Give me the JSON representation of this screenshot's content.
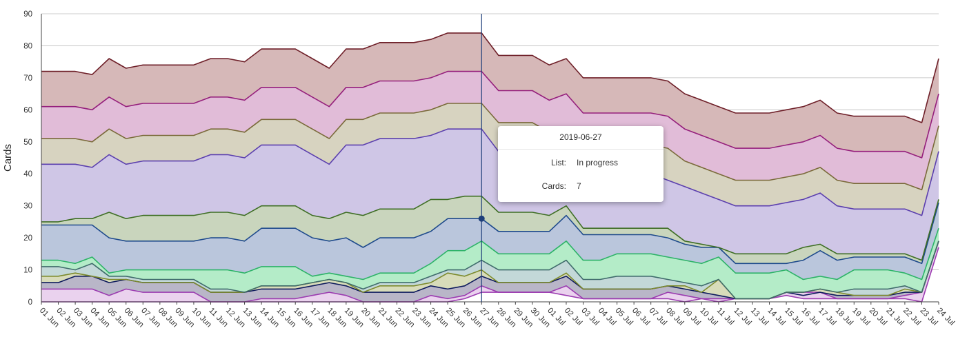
{
  "chart_data": {
    "type": "area",
    "stacked": true,
    "ylabel": "Cards",
    "ylim": [
      0,
      90
    ],
    "yticks": [
      0,
      10,
      20,
      30,
      40,
      50,
      60,
      70,
      80,
      90
    ],
    "grid": true,
    "categories": [
      "01 Jun",
      "02 Jun",
      "03 Jun",
      "04 Jun",
      "05 Jun",
      "06 Jun",
      "07 Jun",
      "08 Jun",
      "09 Jun",
      "10 Jun",
      "11 Jun",
      "12 Jun",
      "13 Jun",
      "14 Jun",
      "15 Jun",
      "16 Jun",
      "17 Jun",
      "18 Jun",
      "19 Jun",
      "20 Jun",
      "21 Jun",
      "22 Jun",
      "23 Jun",
      "24 Jun",
      "25 Jun",
      "26 Jun",
      "27 Jun",
      "28 Jun",
      "29 Jun",
      "30 Jun",
      "01 Jul",
      "02 Jul",
      "03 Jul",
      "04 Jul",
      "05 Jul",
      "06 Jul",
      "07 Jul",
      "08 Jul",
      "09 Jul",
      "10 Jul",
      "11 Jul",
      "12 Jul",
      "13 Jul",
      "14 Jul",
      "15 Jul",
      "16 Jul",
      "17 Jul",
      "18 Jul",
      "19 Jul",
      "20 Jul",
      "21 Jul",
      "22 Jul",
      "23 Jul",
      "24 Jul"
    ],
    "series_colors": [
      {
        "line": "#9b3bb0",
        "fill": "#ead2ee"
      },
      {
        "line": "#0d1a5c",
        "fill": "#b9b6c8"
      },
      {
        "line": "#7d8a2c",
        "fill": "#d8dcba"
      },
      {
        "line": "#3f6b6b",
        "fill": "#c3d8d8"
      },
      {
        "line": "#2db368",
        "fill": "#b4ecc8"
      },
      {
        "line": "#1e4a8c",
        "fill": "#bac6dc"
      },
      {
        "line": "#3e6e24",
        "fill": "#c9d5bd"
      },
      {
        "line": "#5b3fae",
        "fill": "#cfc6e6"
      },
      {
        "line": "#7a6a3a",
        "fill": "#d7d3c0"
      },
      {
        "line": "#951f7c",
        "fill": "#e1bcd8"
      },
      {
        "line": "#6e1f28",
        "fill": "#d6b8b8"
      }
    ],
    "series_totals": [
      [
        0,
        0,
        0,
        0,
        0,
        0,
        0,
        0,
        0,
        0,
        0,
        0,
        0,
        0,
        0,
        0,
        0,
        0,
        0,
        0,
        0,
        0,
        0,
        0,
        0,
        1,
        3,
        3,
        3,
        3,
        3,
        2,
        1,
        1,
        1,
        1,
        1,
        1,
        0,
        1,
        1,
        1,
        1,
        1,
        2,
        1,
        1,
        1,
        1,
        1,
        1,
        1,
        0,
        17
      ],
      [
        4,
        4,
        4,
        4,
        2,
        4,
        3,
        3,
        3,
        3,
        0,
        0,
        0,
        1,
        1,
        1,
        2,
        3,
        2,
        0,
        0,
        0,
        0,
        2,
        1,
        2,
        5,
        3,
        3,
        3,
        3,
        5,
        1,
        1,
        1,
        1,
        1,
        3,
        2,
        1,
        0,
        1,
        1,
        1,
        3,
        3,
        3,
        1,
        1,
        1,
        1,
        2,
        3,
        19
      ],
      [
        6,
        6,
        8,
        8,
        6,
        7,
        6,
        6,
        6,
        6,
        3,
        3,
        3,
        4,
        4,
        4,
        5,
        6,
        5,
        3,
        3,
        3,
        3,
        5,
        4,
        5,
        8,
        6,
        6,
        6,
        6,
        8,
        4,
        4,
        4,
        4,
        4,
        5,
        4,
        3,
        2,
        1,
        1,
        1,
        3,
        2,
        3,
        2,
        2,
        2,
        2,
        3,
        3,
        19
      ],
      [
        8,
        8,
        9,
        8,
        7,
        7,
        6,
        6,
        6,
        6,
        3,
        3,
        3,
        5,
        5,
        5,
        6,
        7,
        6,
        3,
        5,
        5,
        5,
        6,
        9,
        8,
        10,
        6,
        6,
        6,
        6,
        9,
        4,
        4,
        4,
        4,
        4,
        5,
        5,
        3,
        7,
        1,
        1,
        1,
        3,
        3,
        4,
        3,
        2,
        2,
        2,
        4,
        3,
        19
      ],
      [
        11,
        11,
        10,
        12,
        8,
        8,
        7,
        7,
        7,
        7,
        4,
        4,
        3,
        5,
        5,
        5,
        6,
        7,
        6,
        4,
        6,
        6,
        6,
        8,
        10,
        10,
        13,
        10,
        10,
        10,
        10,
        13,
        7,
        7,
        8,
        8,
        8,
        7,
        6,
        5,
        7,
        1,
        1,
        1,
        3,
        3,
        4,
        3,
        4,
        4,
        4,
        5,
        3,
        19
      ],
      [
        13,
        13,
        12,
        14,
        9,
        10,
        10,
        10,
        10,
        10,
        10,
        10,
        9,
        11,
        11,
        11,
        8,
        9,
        8,
        7,
        9,
        9,
        9,
        12,
        16,
        16,
        19,
        15,
        15,
        15,
        15,
        19,
        13,
        13,
        15,
        15,
        15,
        14,
        13,
        12,
        14,
        9,
        9,
        9,
        10,
        7,
        8,
        7,
        10,
        10,
        10,
        9,
        7,
        23
      ],
      [
        24,
        24,
        24,
        24,
        20,
        19,
        19,
        19,
        19,
        19,
        20,
        20,
        19,
        23,
        23,
        23,
        20,
        19,
        20,
        17,
        20,
        20,
        20,
        22,
        26,
        26,
        26,
        22,
        22,
        22,
        22,
        27,
        21,
        21,
        21,
        21,
        21,
        20,
        18,
        17,
        17,
        12,
        12,
        12,
        12,
        13,
        16,
        13,
        14,
        14,
        14,
        14,
        12,
        31
      ],
      [
        25,
        25,
        26,
        26,
        28,
        26,
        27,
        27,
        27,
        27,
        28,
        28,
        27,
        30,
        30,
        30,
        27,
        26,
        28,
        27,
        29,
        29,
        29,
        32,
        32,
        33,
        33,
        28,
        28,
        28,
        27,
        30,
        23,
        23,
        23,
        23,
        23,
        23,
        19,
        18,
        17,
        15,
        15,
        15,
        15,
        17,
        18,
        15,
        15,
        15,
        15,
        15,
        13,
        32
      ],
      [
        43,
        43,
        43,
        42,
        46,
        43,
        44,
        44,
        44,
        44,
        46,
        46,
        45,
        49,
        49,
        49,
        46,
        43,
        49,
        49,
        51,
        51,
        51,
        52,
        54,
        54,
        54,
        47,
        47,
        47,
        44,
        45,
        40,
        40,
        40,
        40,
        40,
        38,
        36,
        34,
        32,
        30,
        30,
        30,
        31,
        32,
        34,
        30,
        29,
        29,
        29,
        29,
        27,
        47
      ],
      [
        51,
        51,
        51,
        50,
        54,
        51,
        52,
        52,
        52,
        52,
        54,
        54,
        53,
        57,
        57,
        57,
        54,
        51,
        57,
        57,
        59,
        59,
        59,
        60,
        62,
        62,
        62,
        56,
        56,
        56,
        53,
        53,
        49,
        49,
        49,
        49,
        49,
        48,
        44,
        42,
        40,
        38,
        38,
        38,
        39,
        40,
        42,
        38,
        37,
        37,
        37,
        37,
        35,
        55
      ],
      [
        61,
        61,
        61,
        60,
        64,
        61,
        62,
        62,
        62,
        62,
        64,
        64,
        63,
        67,
        67,
        67,
        64,
        61,
        67,
        67,
        69,
        69,
        69,
        70,
        72,
        72,
        72,
        66,
        66,
        66,
        63,
        65,
        59,
        59,
        59,
        59,
        59,
        58,
        54,
        52,
        50,
        48,
        48,
        48,
        49,
        50,
        52,
        48,
        47,
        47,
        47,
        47,
        45,
        65
      ],
      [
        72,
        72,
        72,
        71,
        76,
        73,
        74,
        74,
        74,
        74,
        76,
        76,
        75,
        79,
        79,
        79,
        76,
        73,
        79,
        79,
        81,
        81,
        81,
        82,
        84,
        84,
        84,
        77,
        77,
        77,
        74,
        76,
        70,
        70,
        70,
        70,
        70,
        69,
        65,
        63,
        61,
        59,
        59,
        59,
        60,
        61,
        63,
        59,
        58,
        58,
        58,
        58,
        56,
        76
      ]
    ],
    "highlight_index": 26,
    "highlight_value": 26
  },
  "tooltip": {
    "date": "2019-06-27",
    "list_label": "List:",
    "list_value": "In progress",
    "cards_label": "Cards:",
    "cards_value": "7"
  }
}
